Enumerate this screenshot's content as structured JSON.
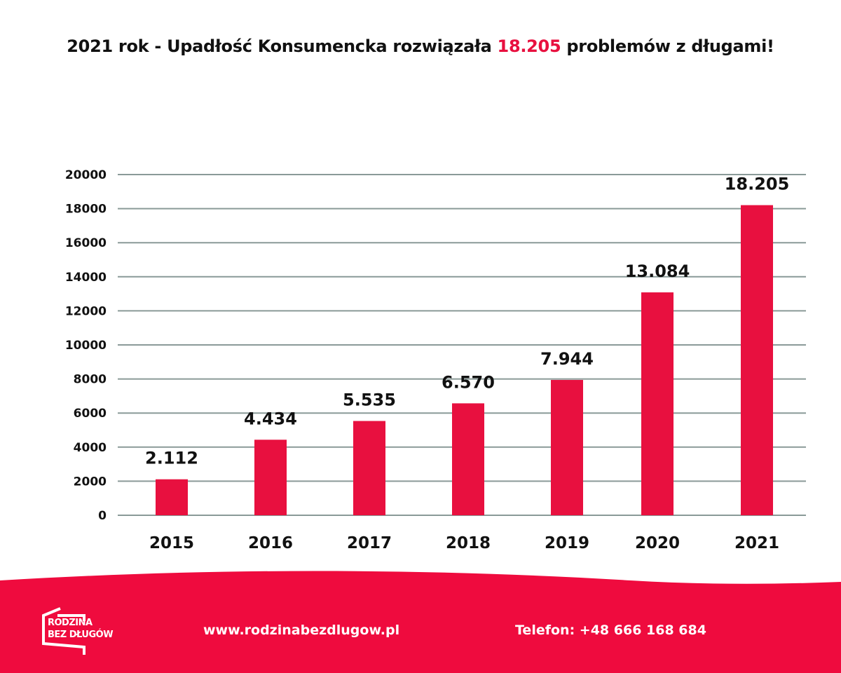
{
  "title": {
    "prefix": "2021 rok - Upadłość Konsumencka rozwiązała ",
    "highlight": "18.205",
    "suffix": " problemów z długami!"
  },
  "colors": {
    "bar": "#e8103f",
    "grid": "#8a9a98",
    "footer": "#ef0b3e",
    "highlight": "#e8103f"
  },
  "chart_data": {
    "type": "bar",
    "categories": [
      "2015",
      "2016",
      "2017",
      "2018",
      "2019",
      "2020",
      "2021"
    ],
    "values": [
      2112,
      4434,
      5535,
      6570,
      7944,
      13084,
      18205
    ],
    "data_labels": [
      "2.112",
      "4.434",
      "5.535",
      "6.570",
      "7.944",
      "13.084",
      "18.205"
    ],
    "yticks": [
      0,
      2000,
      4000,
      6000,
      8000,
      10000,
      12000,
      14000,
      16000,
      18000,
      20000
    ],
    "ylim": [
      0,
      20000
    ],
    "grid": true
  },
  "footer": {
    "logo_line1": "RODZINA",
    "logo_line2": "BEZ DŁUGÓW",
    "url": "www.rodzinabezdlugow.pl",
    "phone": "Telefon: +48 666 168 684"
  }
}
